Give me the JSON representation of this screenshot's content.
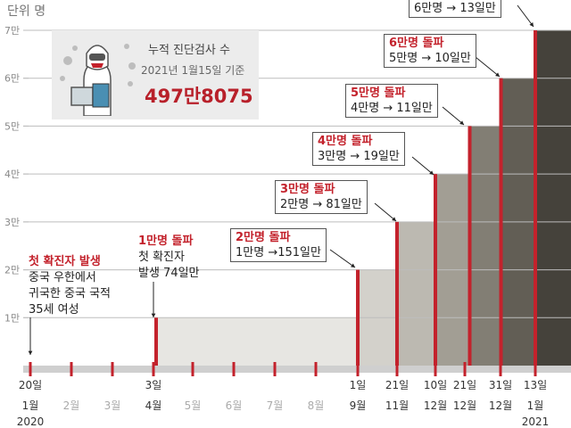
{
  "unit_label": "단위 명",
  "info": {
    "line1": "누적 진단검사 수",
    "line2": "2021년 1월15일 기준",
    "value": "497만8075"
  },
  "colors": {
    "highlight": "#c3222c",
    "axis": "#9a9a9a"
  },
  "chart_data": {
    "type": "area",
    "title": "",
    "xlabel": "",
    "ylabel": "",
    "unit": "단위 명",
    "y_ticks": [
      "1만",
      "2만",
      "3만",
      "4만",
      "5만",
      "6만",
      "7만"
    ],
    "ylim": [
      0,
      70000
    ],
    "x_ticks": [
      {
        "top": "20일",
        "bottom": "1월",
        "year": "2020"
      },
      {
        "top": "",
        "bottom": "2월",
        "year": ""
      },
      {
        "top": "",
        "bottom": "3월",
        "year": ""
      },
      {
        "top": "3일",
        "bottom": "4월",
        "year": ""
      },
      {
        "top": "",
        "bottom": "5월",
        "year": ""
      },
      {
        "top": "",
        "bottom": "6월",
        "year": ""
      },
      {
        "top": "",
        "bottom": "7월",
        "year": ""
      },
      {
        "top": "",
        "bottom": "8월",
        "year": ""
      },
      {
        "top": "1일",
        "bottom": "9월",
        "year": ""
      },
      {
        "top": "21일",
        "bottom": "11월",
        "year": ""
      },
      {
        "top": "10일",
        "bottom": "12월",
        "year": ""
      },
      {
        "top": "21일",
        "bottom": "12월",
        "year": ""
      },
      {
        "top": "31일",
        "bottom": "12월",
        "year": ""
      },
      {
        "top": "13일",
        "bottom": "1월",
        "year": "2021"
      }
    ],
    "milestones": [
      {
        "date": "2020-01-20",
        "value": 0
      },
      {
        "date": "2020-04-03",
        "value": 10000
      },
      {
        "date": "2020-09-01",
        "value": 20000
      },
      {
        "date": "2020-11-21",
        "value": 30000
      },
      {
        "date": "2020-12-10",
        "value": 40000
      },
      {
        "date": "2020-12-21",
        "value": 50000
      },
      {
        "date": "2020-12-31",
        "value": 60000
      },
      {
        "date": "2021-01-13",
        "value": 70000
      }
    ],
    "annotations": [
      {
        "headline": "첫 확진자 발생",
        "lines": [
          "중국 우한에서",
          "귀국한 중국 국적",
          "35세 여성"
        ]
      },
      {
        "headline": "1만명 돌파",
        "lines": [
          "첫 확진자",
          "발생 74일만"
        ]
      },
      {
        "headline": "2만명 돌파",
        "lines": [
          "1만명 →151일만"
        ]
      },
      {
        "headline": "3만명 돌파",
        "lines": [
          "2만명 → 81일만"
        ]
      },
      {
        "headline": "4만명 돌파",
        "lines": [
          "3만명 → 19일만"
        ]
      },
      {
        "headline": "5만명 돌파",
        "lines": [
          "4만명 → 11일만"
        ]
      },
      {
        "headline": "6만명 돌파",
        "lines": [
          "5만명 → 10일만"
        ]
      },
      {
        "headline": "",
        "lines": [
          "6만명 → 13일만"
        ]
      }
    ]
  }
}
